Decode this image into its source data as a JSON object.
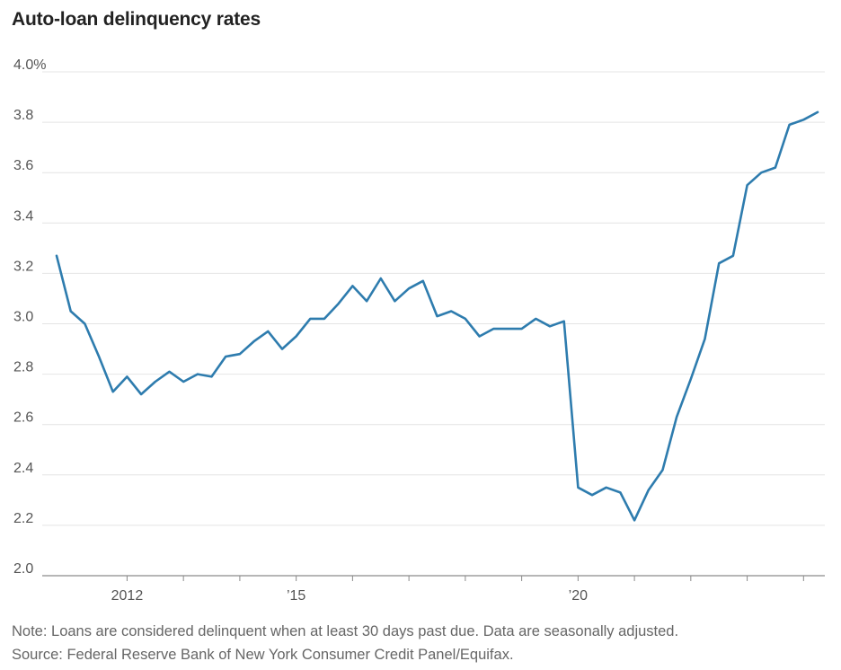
{
  "chart_data": {
    "type": "line",
    "title": "Auto-loan delinquency rates",
    "xlabel": "",
    "ylabel": "",
    "ylim": [
      2.0,
      4.0
    ],
    "yticks": [
      {
        "value": 2.0,
        "label": "2.0"
      },
      {
        "value": 2.2,
        "label": "2.2"
      },
      {
        "value": 2.4,
        "label": "2.4"
      },
      {
        "value": 2.6,
        "label": "2.6"
      },
      {
        "value": 2.8,
        "label": "2.8"
      },
      {
        "value": 3.0,
        "label": "3.0"
      },
      {
        "value": 3.2,
        "label": "3.2"
      },
      {
        "value": 3.4,
        "label": "3.4"
      },
      {
        "value": 3.6,
        "label": "3.6"
      },
      {
        "value": 3.8,
        "label": "3.8"
      },
      {
        "value": 4.0,
        "label": "4.0%"
      }
    ],
    "xlim": [
      2010.75,
      2024.25
    ],
    "xtick_marks": [
      2012,
      2013,
      2014,
      2015,
      2016,
      2017,
      2018,
      2019,
      2020,
      2021,
      2022,
      2023,
      2024
    ],
    "xtick_labels": [
      {
        "value": 2012,
        "label": "2012"
      },
      {
        "value": 2015,
        "label": "’15"
      },
      {
        "value": 2020,
        "label": "’20"
      }
    ],
    "series": [
      {
        "name": "Auto-loan delinquency rate",
        "color": "#2e7cae",
        "x": [
          2010.75,
          2011.0,
          2011.25,
          2011.5,
          2011.75,
          2012.0,
          2012.25,
          2012.5,
          2012.75,
          2013.0,
          2013.25,
          2013.5,
          2013.75,
          2014.0,
          2014.25,
          2014.5,
          2014.75,
          2015.0,
          2015.25,
          2015.5,
          2015.75,
          2016.0,
          2016.25,
          2016.5,
          2016.75,
          2017.0,
          2017.25,
          2017.5,
          2017.75,
          2018.0,
          2018.25,
          2018.5,
          2018.75,
          2019.0,
          2019.25,
          2019.5,
          2019.75,
          2020.0,
          2020.25,
          2020.5,
          2020.75,
          2021.0,
          2021.25,
          2021.5,
          2021.75,
          2022.0,
          2022.25,
          2022.5,
          2022.75,
          2023.0,
          2023.25,
          2023.5,
          2023.75,
          2024.0,
          2024.25
        ],
        "values": [
          3.27,
          3.05,
          3.0,
          2.87,
          2.73,
          2.79,
          2.72,
          2.77,
          2.81,
          2.77,
          2.8,
          2.79,
          2.87,
          2.88,
          2.93,
          2.97,
          2.9,
          2.95,
          3.02,
          3.02,
          3.08,
          3.15,
          3.09,
          3.18,
          3.09,
          3.14,
          3.17,
          3.03,
          3.05,
          3.02,
          2.95,
          2.98,
          2.98,
          2.98,
          3.02,
          2.99,
          3.01,
          2.35,
          2.32,
          2.35,
          2.33,
          2.22,
          2.34,
          2.42,
          2.63,
          2.78,
          2.94,
          3.24,
          3.27,
          3.55,
          3.6,
          3.62,
          3.79,
          3.81,
          3.84
        ]
      }
    ]
  },
  "notes": {
    "note": "Note: Loans are considered delinquent when at least 30 days past due. Data are seasonally adjusted.",
    "source": "Source: Federal Reserve Bank of New York Consumer Credit Panel/Equifax."
  }
}
